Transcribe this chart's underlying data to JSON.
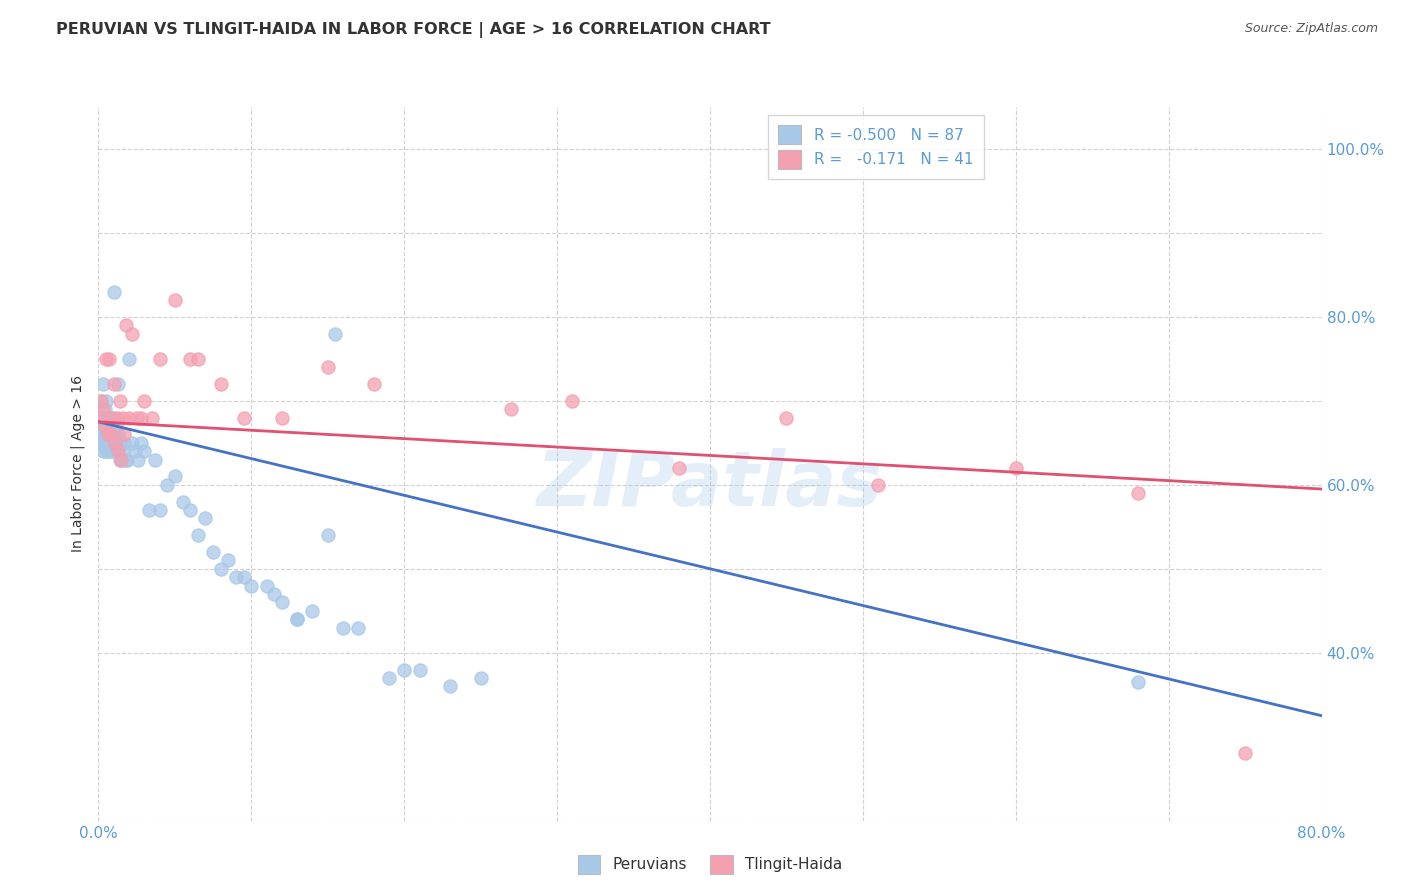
{
  "title": "PERUVIAN VS TLINGIT-HAIDA IN LABOR FORCE | AGE > 16 CORRELATION CHART",
  "source": "Source: ZipAtlas.com",
  "ylabel": "In Labor Force | Age > 16",
  "xlim": [
    0.0,
    0.8
  ],
  "ylim": [
    0.2,
    1.05
  ],
  "ytick_values": [
    0.2,
    0.4,
    0.5,
    0.6,
    0.7,
    0.8,
    0.9,
    1.0
  ],
  "xtick_values": [
    0.0,
    0.1,
    0.2,
    0.3,
    0.4,
    0.5,
    0.6,
    0.7,
    0.8
  ],
  "axis_color": "#5b9bd5",
  "grid_color": "#cccccc",
  "blue_color": "#a8c8e8",
  "pink_color": "#f4a0b0",
  "blue_line_color": "#4472c4",
  "pink_line_color": "#e05070",
  "legend_r_blue": "-0.500",
  "legend_n_blue": "87",
  "legend_r_pink": "-0.171",
  "legend_n_pink": "41",
  "watermark": "ZIPatlas",
  "blue_line": [
    [
      0.0,
      0.675
    ],
    [
      0.8,
      0.325
    ]
  ],
  "pink_line": [
    [
      0.0,
      0.675
    ],
    [
      0.8,
      0.595
    ]
  ],
  "peruvian_x": [
    0.001,
    0.001,
    0.002,
    0.002,
    0.002,
    0.003,
    0.003,
    0.003,
    0.003,
    0.004,
    0.004,
    0.004,
    0.004,
    0.005,
    0.005,
    0.005,
    0.005,
    0.005,
    0.006,
    0.006,
    0.006,
    0.006,
    0.007,
    0.007,
    0.007,
    0.007,
    0.008,
    0.008,
    0.008,
    0.008,
    0.009,
    0.009,
    0.009,
    0.01,
    0.01,
    0.01,
    0.01,
    0.011,
    0.011,
    0.012,
    0.012,
    0.013,
    0.013,
    0.014,
    0.014,
    0.015,
    0.016,
    0.017,
    0.018,
    0.019,
    0.02,
    0.022,
    0.024,
    0.026,
    0.028,
    0.03,
    0.033,
    0.037,
    0.04,
    0.045,
    0.05,
    0.055,
    0.06,
    0.07,
    0.08,
    0.09,
    0.1,
    0.115,
    0.13,
    0.15,
    0.17,
    0.2,
    0.23,
    0.16,
    0.13,
    0.14,
    0.12,
    0.11,
    0.095,
    0.085,
    0.075,
    0.065,
    0.19,
    0.21,
    0.25,
    0.68,
    0.155
  ],
  "peruvian_y": [
    0.67,
    0.66,
    0.68,
    0.65,
    0.7,
    0.66,
    0.68,
    0.64,
    0.72,
    0.67,
    0.69,
    0.65,
    0.68,
    0.66,
    0.68,
    0.7,
    0.65,
    0.64,
    0.66,
    0.68,
    0.65,
    0.64,
    0.66,
    0.68,
    0.65,
    0.64,
    0.66,
    0.67,
    0.65,
    0.68,
    0.66,
    0.65,
    0.64,
    0.66,
    0.64,
    0.68,
    0.83,
    0.65,
    0.67,
    0.66,
    0.64,
    0.66,
    0.72,
    0.65,
    0.63,
    0.63,
    0.64,
    0.65,
    0.63,
    0.63,
    0.75,
    0.65,
    0.64,
    0.63,
    0.65,
    0.64,
    0.57,
    0.63,
    0.57,
    0.6,
    0.61,
    0.58,
    0.57,
    0.56,
    0.5,
    0.49,
    0.48,
    0.47,
    0.44,
    0.54,
    0.43,
    0.38,
    0.36,
    0.43,
    0.44,
    0.45,
    0.46,
    0.48,
    0.49,
    0.51,
    0.52,
    0.54,
    0.37,
    0.38,
    0.37,
    0.365,
    0.78
  ],
  "tlingit_x": [
    0.001,
    0.002,
    0.003,
    0.004,
    0.005,
    0.006,
    0.007,
    0.008,
    0.009,
    0.01,
    0.011,
    0.012,
    0.013,
    0.014,
    0.015,
    0.016,
    0.017,
    0.018,
    0.02,
    0.022,
    0.025,
    0.028,
    0.03,
    0.035,
    0.04,
    0.05,
    0.065,
    0.08,
    0.095,
    0.12,
    0.15,
    0.18,
    0.27,
    0.31,
    0.38,
    0.45,
    0.51,
    0.6,
    0.68,
    0.75,
    0.06
  ],
  "tlingit_y": [
    0.68,
    0.7,
    0.69,
    0.67,
    0.75,
    0.66,
    0.75,
    0.66,
    0.68,
    0.72,
    0.65,
    0.68,
    0.64,
    0.7,
    0.63,
    0.68,
    0.66,
    0.79,
    0.68,
    0.78,
    0.68,
    0.68,
    0.7,
    0.68,
    0.75,
    0.82,
    0.75,
    0.72,
    0.68,
    0.68,
    0.74,
    0.72,
    0.69,
    0.7,
    0.62,
    0.68,
    0.6,
    0.62,
    0.59,
    0.28,
    0.75
  ]
}
